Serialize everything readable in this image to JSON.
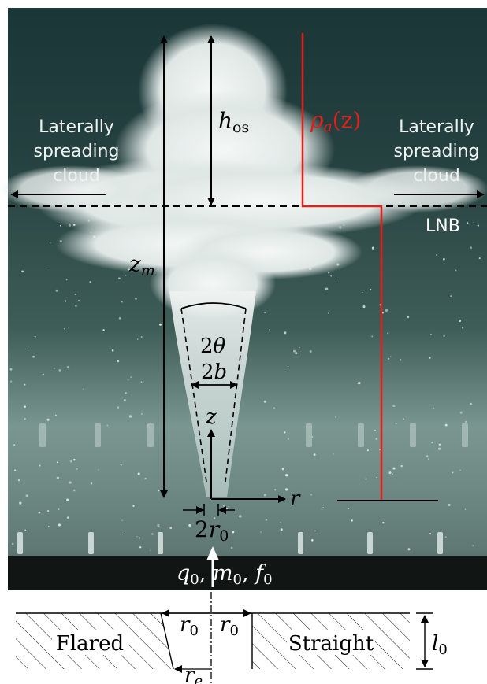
{
  "photo": {
    "left_cloud_label": [
      "Laterally",
      "spreading",
      "cloud"
    ],
    "right_cloud_label": [
      "Laterally",
      "spreading",
      "cloud"
    ],
    "lnb_label": "LNB",
    "h_os": {
      "sym": "h",
      "sub": "os"
    },
    "density": {
      "sym": "ρ",
      "sub": "a",
      "arg": "(z)"
    },
    "z_m": {
      "sym": "z",
      "sub": "m"
    },
    "theta": {
      "coef": "2",
      "sym": "θ"
    },
    "b": {
      "coef": "2",
      "sym": "b"
    },
    "z_axis": "z",
    "r_axis": "r",
    "r0": {
      "coef": "2",
      "sym": "r",
      "sub": "0"
    },
    "source": {
      "q": "q",
      "m": "m",
      "f": "f",
      "sub": "0",
      "sep": ", "
    },
    "colors": {
      "water_dark": "#1e3c3c",
      "water_light": "#6d8a84",
      "plume": "#e6ecea",
      "density_line": "#e0201a"
    }
  },
  "nozzle": {
    "flared_label": "Flared",
    "straight_label": "Straight",
    "r0_left": {
      "sym": "r",
      "sub": "0"
    },
    "r0_right": {
      "sym": "r",
      "sub": "0"
    },
    "re": {
      "sym": "r",
      "sub": "e"
    },
    "l0": {
      "sym": "l",
      "sub": "0"
    }
  }
}
